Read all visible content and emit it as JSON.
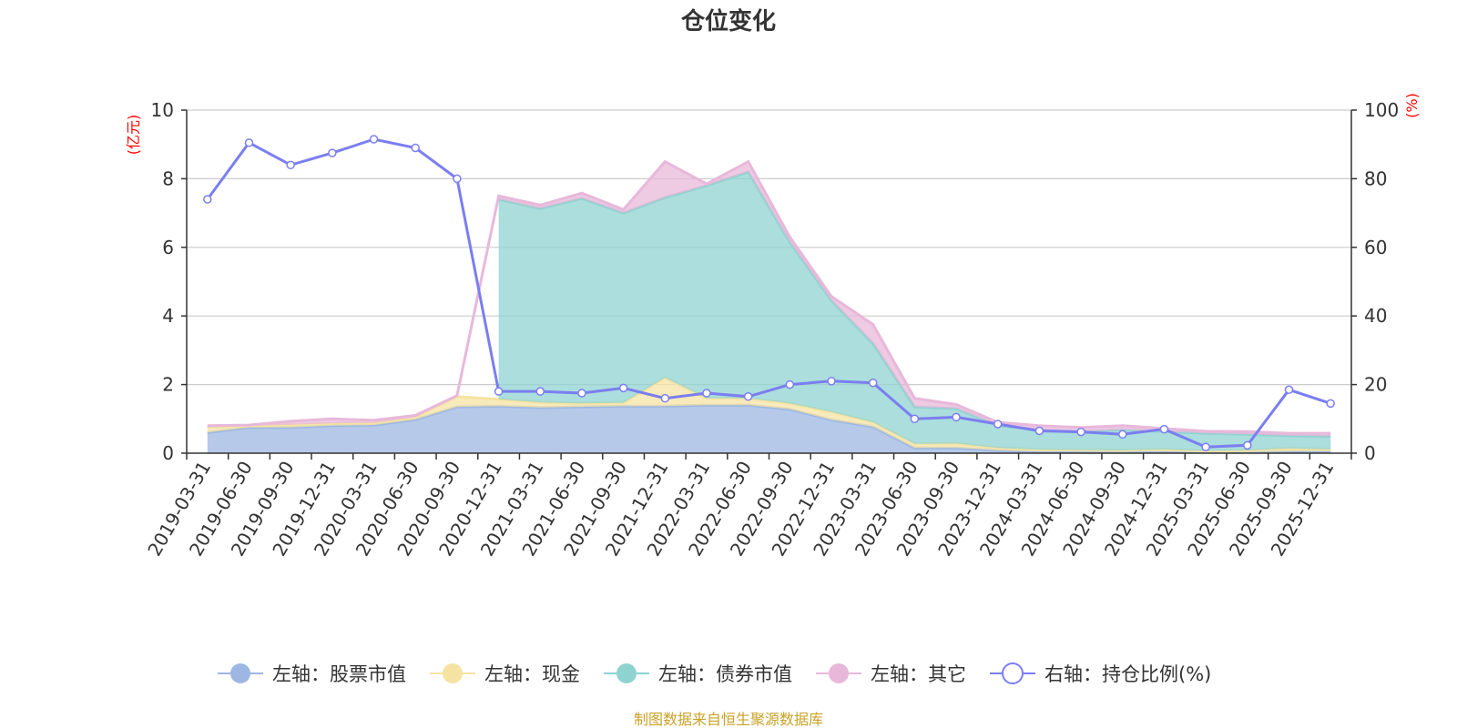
{
  "colors": {
    "stock": "#9db7e2",
    "cash": "#f5e3a3",
    "bond": "#8fd3d1",
    "other": "#e8b8da",
    "ratio": "#7b7ef0",
    "grid": "#cccccc",
    "axis": "#333333",
    "unit": "#ff0000",
    "source": "#c9a227",
    "title": "#333333"
  },
  "source_text": "制图数据来自恒生聚源数据库",
  "chart_data": {
    "type": "area",
    "title": "仓位变化",
    "y_left_unit": "(亿元)",
    "y_right_unit": "(%)",
    "ylim_left": [
      0,
      10
    ],
    "ylim_right": [
      0,
      100
    ],
    "y_left_ticks": [
      "0",
      "2",
      "4",
      "6",
      "8",
      "10"
    ],
    "y_right_ticks": [
      "0",
      "20",
      "40",
      "60",
      "80",
      "100"
    ],
    "grid": true,
    "legend_position": "bottom",
    "categories": [
      "2019-03-31",
      "2019-06-30",
      "2019-09-30",
      "2019-12-31",
      "2020-03-31",
      "2020-06-30",
      "2020-09-30",
      "2020-12-31",
      "2021-03-31",
      "2021-06-30",
      "2021-09-30",
      "2021-12-31",
      "2022-03-31",
      "2022-06-30",
      "2022-09-30",
      "2022-12-31",
      "2023-03-31",
      "2023-06-30",
      "2023-09-30",
      "2023-12-31",
      "2024-03-31",
      "2024-06-30",
      "2024-09-30",
      "2024-12-31",
      "2025-03-31",
      "2025-06-30",
      "2025-09-30",
      "2025-12-31"
    ],
    "series": [
      {
        "key": "stock",
        "name": "左轴：股票市值",
        "axis": "left",
        "kind": "area",
        "values": [
          0.6,
          0.75,
          0.75,
          0.8,
          0.82,
          0.98,
          1.35,
          1.37,
          1.33,
          1.35,
          1.37,
          1.37,
          1.4,
          1.4,
          1.28,
          0.97,
          0.77,
          0.15,
          0.15,
          0.08,
          0.05,
          0.05,
          0.05,
          0.05,
          0.03,
          0.03,
          0.05,
          0.06
        ]
      },
      {
        "key": "cash",
        "name": "左轴：现金",
        "axis": "left",
        "kind": "area",
        "values": [
          0.15,
          0.05,
          0.08,
          0.07,
          0.06,
          0.07,
          0.3,
          0.2,
          0.15,
          0.1,
          0.1,
          0.83,
          0.2,
          0.2,
          0.17,
          0.23,
          0.13,
          0.12,
          0.13,
          0.07,
          0.05,
          0.04,
          0.03,
          0.06,
          0.03,
          0.05,
          0.09,
          0.05
        ]
      },
      {
        "key": "bond",
        "name": "左轴：债券市值",
        "axis": "left",
        "kind": "area",
        "values": [
          0.0,
          0.0,
          0.0,
          0.0,
          0.0,
          0.0,
          0.0,
          5.83,
          5.65,
          5.98,
          5.53,
          5.25,
          6.2,
          6.6,
          4.7,
          3.25,
          2.3,
          1.08,
          1.02,
          0.66,
          0.58,
          0.54,
          0.6,
          0.52,
          0.52,
          0.47,
          0.37,
          0.38
        ]
      },
      {
        "key": "other",
        "name": "左轴：其它",
        "axis": "left",
        "kind": "area",
        "values": [
          0.05,
          0.02,
          0.1,
          0.13,
          0.08,
          0.05,
          0.03,
          0.1,
          0.1,
          0.15,
          0.1,
          1.05,
          0.05,
          0.3,
          0.15,
          0.12,
          0.55,
          0.25,
          0.12,
          0.09,
          0.12,
          0.12,
          0.12,
          0.09,
          0.06,
          0.08,
          0.07,
          0.09
        ]
      },
      {
        "key": "ratio",
        "name": "右轴：持仓比例(%)",
        "axis": "right",
        "kind": "line",
        "values": [
          74,
          90.5,
          84,
          87.5,
          91.5,
          89,
          80,
          18,
          18,
          17.5,
          19,
          16,
          17.5,
          16.5,
          20,
          21,
          20.5,
          10,
          10.5,
          8.5,
          6.5,
          6.2,
          5.5,
          7,
          1.8,
          2.3,
          18.5,
          14.5
        ]
      }
    ]
  }
}
